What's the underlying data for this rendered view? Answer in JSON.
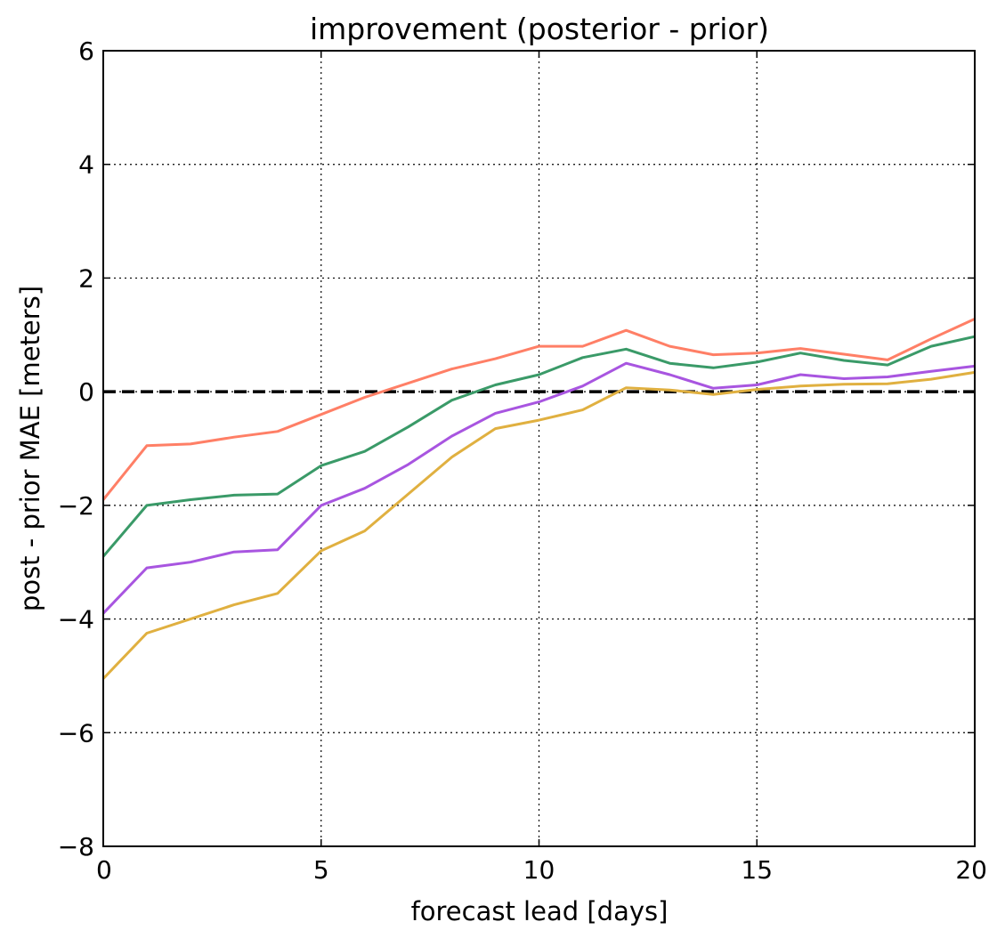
{
  "chart_data": {
    "type": "line",
    "title": "improvement (posterior - prior)",
    "xlabel": "forecast lead [days]",
    "ylabel": "post - prior MAE [meters]",
    "xlim": [
      0,
      20
    ],
    "ylim": [
      -8,
      6
    ],
    "xticks": [
      0,
      5,
      10,
      15,
      20
    ],
    "yticks": [
      -8,
      -6,
      -4,
      -2,
      0,
      2,
      4,
      6
    ],
    "xtick_labels": [
      "0",
      "5",
      "10",
      "15",
      "20"
    ],
    "ytick_labels": [
      "−8",
      "−6",
      "−4",
      "−2",
      "0",
      "2",
      "4",
      "6"
    ],
    "grid": true,
    "legend": false,
    "x": [
      0,
      1,
      2,
      3,
      4,
      5,
      6,
      7,
      8,
      9,
      10,
      11,
      12,
      13,
      14,
      15,
      16,
      17,
      18,
      19,
      20
    ],
    "series": [
      {
        "color": "#ff7f66",
        "values": [
          -1.9,
          -0.95,
          -0.92,
          -0.8,
          -0.7,
          -0.4,
          -0.1,
          0.15,
          0.4,
          0.58,
          0.8,
          0.8,
          1.08,
          0.8,
          0.65,
          0.68,
          0.76,
          0.66,
          0.56,
          0.93,
          1.28
        ]
      },
      {
        "color": "#3a9a68",
        "values": [
          -2.9,
          -2.0,
          -1.9,
          -1.82,
          -1.8,
          -1.3,
          -1.05,
          -0.62,
          -0.15,
          0.12,
          0.3,
          0.6,
          0.75,
          0.5,
          0.42,
          0.52,
          0.68,
          0.55,
          0.47,
          0.8,
          0.97
        ]
      },
      {
        "color": "#a855e0",
        "values": [
          -3.9,
          -3.1,
          -3.0,
          -2.82,
          -2.78,
          -2.0,
          -1.7,
          -1.28,
          -0.78,
          -0.38,
          -0.18,
          0.1,
          0.5,
          0.3,
          0.06,
          0.12,
          0.3,
          0.23,
          0.26,
          0.36,
          0.45
        ]
      },
      {
        "color": "#e0b040",
        "values": [
          -5.05,
          -4.25,
          -4.0,
          -3.75,
          -3.55,
          -2.8,
          -2.45,
          -1.8,
          -1.15,
          -0.65,
          -0.5,
          -0.32,
          0.07,
          0.03,
          -0.05,
          0.04,
          0.1,
          0.13,
          0.14,
          0.22,
          0.34
        ]
      }
    ],
    "reference_line": {
      "y": 0,
      "style": "dashed",
      "color": "#000000"
    }
  }
}
